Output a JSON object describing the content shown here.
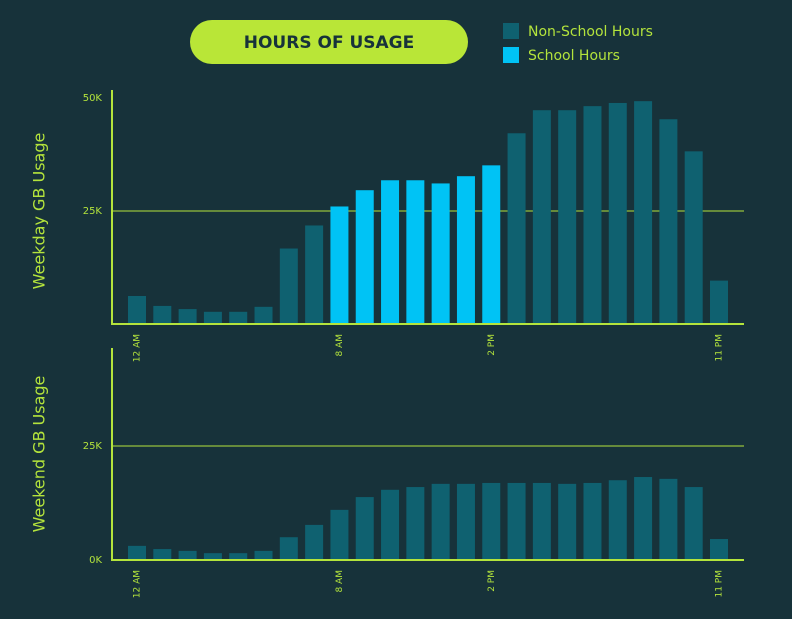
{
  "chart_data": [
    {
      "type": "bar",
      "title": "HOURS OF USAGE",
      "y_label": "Weekday GB Usage",
      "categories": [
        "12 AM",
        null,
        null,
        null,
        null,
        null,
        null,
        null,
        "8 AM",
        null,
        null,
        null,
        null,
        null,
        "2 PM",
        null,
        null,
        null,
        null,
        null,
        null,
        null,
        null,
        "11 PM"
      ],
      "series": [
        {
          "name": "Non-School Hours",
          "color": "#0f6170",
          "values": [
            6.2,
            4,
            3.3,
            2.7,
            2.7,
            3.8,
            16.7,
            21.8,
            null,
            null,
            null,
            null,
            null,
            null,
            null,
            42.2,
            47.3,
            47.3,
            48.2,
            48.9,
            49.3,
            45.3,
            38.2,
            9.6
          ]
        },
        {
          "name": "School Hours",
          "color": "#00c3f5",
          "values": [
            null,
            null,
            null,
            null,
            null,
            null,
            null,
            null,
            26,
            29.6,
            31.8,
            31.8,
            31.1,
            32.7,
            35.1,
            null,
            null,
            null,
            null,
            null,
            null,
            null,
            null,
            null
          ]
        }
      ],
      "ylim": [
        0,
        50
      ],
      "yticks": [
        {
          "value": 25,
          "label": "25K"
        },
        {
          "value": 50,
          "label": "50K"
        }
      ],
      "grid": true
    },
    {
      "type": "bar",
      "y_label": "Weekend GB Usage",
      "categories": [
        "12 AM",
        null,
        null,
        null,
        null,
        null,
        null,
        null,
        "8 AM",
        null,
        null,
        null,
        null,
        null,
        "2 PM",
        null,
        null,
        null,
        null,
        null,
        null,
        null,
        null,
        "11 PM"
      ],
      "series": [
        {
          "name": "Non-School Hours",
          "color": "#0f6170",
          "values": [
            3.1,
            2.4,
            2,
            1.5,
            1.5,
            2,
            5,
            7.7,
            11,
            13.8,
            15.4,
            16,
            16.7,
            16.7,
            16.9,
            16.9,
            16.9,
            16.7,
            16.9,
            17.5,
            18.2,
            17.8,
            16,
            4.6
          ]
        }
      ],
      "ylim": [
        0,
        46.5
      ],
      "yticks": [
        {
          "value": 0,
          "label": "0K"
        },
        {
          "value": 25,
          "label": "25K"
        }
      ],
      "grid": true
    }
  ]
}
